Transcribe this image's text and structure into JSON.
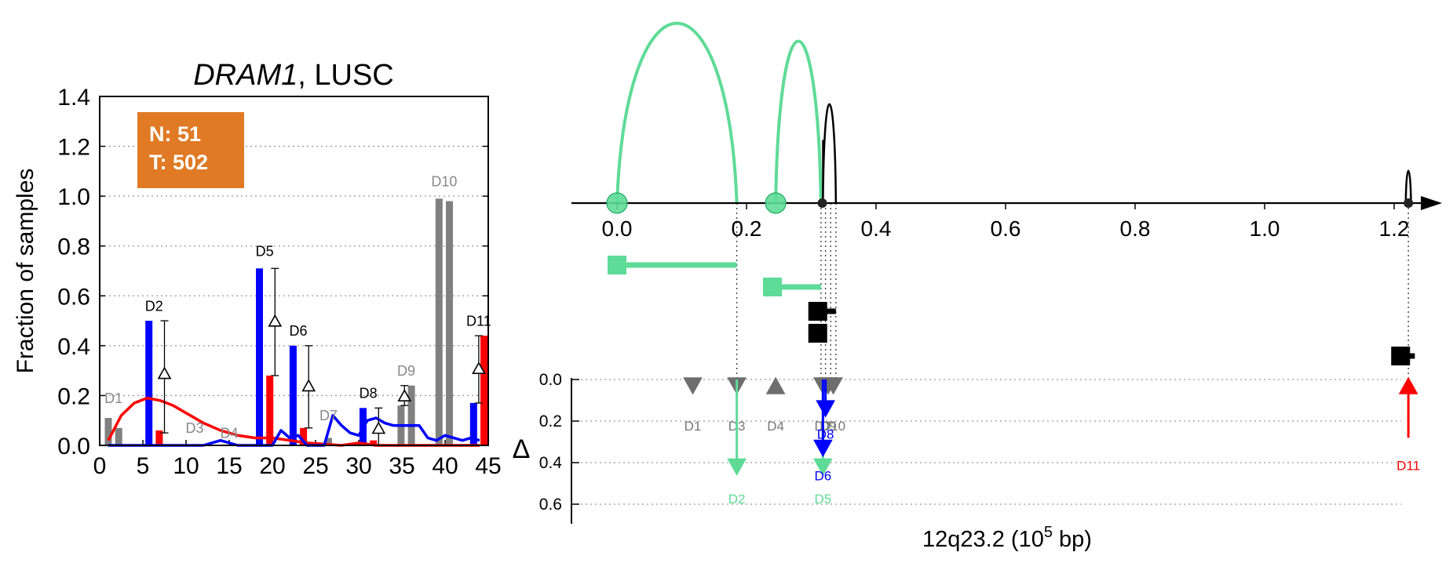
{
  "chart_data": [
    {
      "type": "bar",
      "title": {
        "gene": "DRAM1",
        "rest": ", LUSC"
      },
      "ylabel": "Fraction of samples",
      "xlim": [
        0,
        45
      ],
      "ylim": [
        0,
        1.4
      ],
      "xticks": [
        "0",
        "5",
        "10",
        "15",
        "20",
        "25",
        "30",
        "35",
        "40",
        "45"
      ],
      "yticks": [
        "0.0",
        "0.2",
        "0.4",
        "0.6",
        "0.8",
        "1.0",
        "1.2",
        "1.4"
      ],
      "grid": "horizontal dotted",
      "legend_box": {
        "n_label": "N: 51",
        "t_label": "T: 502",
        "color": "#E07A24"
      },
      "colors": {
        "normal": "#0000FF",
        "tumor": "#FF0000",
        "other": "#808080"
      },
      "domains": [
        {
          "label": "D1",
          "color": "other",
          "label_y": 0.17,
          "bars": [
            {
              "x": 1,
              "v": 0.11,
              "c": "other"
            },
            {
              "x": 2.2,
              "v": 0.07,
              "c": "other"
            }
          ]
        },
        {
          "label": "D2",
          "color": "dark",
          "label_y": 0.54,
          "bars": [
            {
              "x": 5.7,
              "v": 0.5,
              "c": "normal"
            },
            {
              "x": 6.9,
              "v": 0.06,
              "c": "tumor"
            }
          ],
          "delta": {
            "x": 7.5,
            "v": 0.29,
            "lo": 0.05,
            "hi": 0.5
          }
        },
        {
          "label": "D3",
          "color": "other",
          "label_y": 0.05,
          "bars": []
        },
        {
          "label": "D4",
          "color": "other",
          "label_y": 0.03,
          "bars": []
        },
        {
          "label": "D5",
          "color": "dark",
          "label_y": 0.76,
          "bars": [
            {
              "x": 18.5,
              "v": 0.71,
              "c": "normal"
            },
            {
              "x": 19.7,
              "v": 0.28,
              "c": "tumor"
            }
          ],
          "delta": {
            "x": 20.3,
            "v": 0.5,
            "lo": 0.28,
            "hi": 0.71
          }
        },
        {
          "label": "D6",
          "color": "dark",
          "label_y": 0.44,
          "bars": [
            {
              "x": 22.4,
              "v": 0.4,
              "c": "normal"
            },
            {
              "x": 23.6,
              "v": 0.07,
              "c": "tumor"
            }
          ],
          "delta": {
            "x": 24.2,
            "v": 0.24,
            "lo": 0.07,
            "hi": 0.4
          }
        },
        {
          "label": "D7",
          "color": "other",
          "label_y": 0.1,
          "bars": [
            {
              "x": 26.5,
              "v": 0.03,
              "c": "other"
            }
          ]
        },
        {
          "label": "D8",
          "color": "dark",
          "label_y": 0.19,
          "bars": [
            {
              "x": 30.5,
              "v": 0.15,
              "c": "normal"
            },
            {
              "x": 31.7,
              "v": 0.02,
              "c": "tumor"
            }
          ],
          "delta": {
            "x": 32.3,
            "v": 0.07,
            "lo": 0.0,
            "hi": 0.15
          }
        },
        {
          "label": "D9",
          "color": "other",
          "label_y": 0.28,
          "bars": [
            {
              "x": 34.9,
              "v": 0.16,
              "c": "other"
            },
            {
              "x": 36.1,
              "v": 0.24,
              "c": "other"
            }
          ],
          "delta": {
            "x": 35.3,
            "v": 0.2,
            "lo": 0.16,
            "hi": 0.24
          }
        },
        {
          "label": "D10",
          "color": "other",
          "label_y": 1.04,
          "bars": [
            {
              "x": 39.3,
              "v": 0.99,
              "c": "other"
            },
            {
              "x": 40.5,
              "v": 0.98,
              "c": "other"
            }
          ]
        },
        {
          "label": "D11",
          "color": "dark",
          "label_y": 0.48,
          "bars": [
            {
              "x": 43.3,
              "v": 0.17,
              "c": "normal"
            },
            {
              "x": 44.5,
              "v": 0.44,
              "c": "tumor"
            }
          ],
          "delta": {
            "x": 43.9,
            "v": 0.31,
            "lo": 0.17,
            "hi": 0.44
          }
        }
      ],
      "series": [
        {
          "c": "tumor",
          "x": [
            1,
            2.5,
            4,
            5.5,
            7,
            8.5,
            10,
            12,
            14,
            16,
            18,
            20,
            22,
            24,
            26,
            28,
            30,
            32,
            34,
            36,
            38,
            40,
            42,
            44
          ],
          "values": [
            0.02,
            0.12,
            0.17,
            0.19,
            0.18,
            0.16,
            0.13,
            0.09,
            0.06,
            0.04,
            0.03,
            0.03,
            0.02,
            0.01,
            0.005,
            0.0,
            0.01,
            0.0,
            0.0,
            0.0,
            0.0,
            0.0,
            0.0,
            0.0
          ]
        },
        {
          "c": "normal",
          "x": [
            1,
            4,
            8,
            12,
            14,
            16,
            18,
            20,
            21,
            22,
            23,
            24,
            26,
            27,
            28,
            29,
            30,
            31,
            32,
            33,
            34,
            35,
            36,
            37,
            38,
            39,
            40,
            41,
            42,
            43,
            44
          ],
          "values": [
            0.0,
            0.0,
            0.0,
            0.0,
            0.02,
            0.0,
            0.0,
            0.0,
            0.06,
            0.03,
            0.04,
            0.0,
            0.0,
            0.12,
            0.08,
            0.05,
            0.04,
            0.1,
            0.11,
            0.09,
            0.08,
            0.08,
            0.08,
            0.08,
            0.03,
            0.02,
            0.04,
            0.03,
            0.02,
            0.03,
            0.02
          ]
        }
      ]
    },
    {
      "type": "scatter",
      "xlabel": {
        "main": "12q23.2 (10",
        "sup": "5",
        "tail": " bp)"
      },
      "xlim": [
        -0.07,
        1.32
      ],
      "xticks": [
        "0.0",
        "0.2",
        "0.4",
        "0.6",
        "0.8",
        "1.0",
        "1.2"
      ],
      "delta_label": "Δ",
      "delta_ticks": [
        "0.0",
        "0.2",
        "0.4",
        "0.6"
      ],
      "colors": {
        "green": "#5EDB97",
        "black": "#000000",
        "blue": "#0000FF",
        "red": "#FF0000",
        "gray": "#6E6E6E",
        "label_gray": "#777777"
      },
      "arcs": [
        {
          "x1": 0.0,
          "x2": 0.185,
          "h": 1.0,
          "c": "green"
        },
        {
          "x1": 0.245,
          "x2": 0.315,
          "h": 0.9,
          "c": "green"
        },
        {
          "x1": 0.318,
          "x2": 0.338,
          "h": 0.55,
          "c": "black",
          "spike": {
            "x": 0.318,
            "h": 0.35
          }
        },
        {
          "x1": 1.218,
          "x2": 1.226,
          "h": 0.18,
          "c": "black"
        }
      ],
      "circles": [
        {
          "x": 0.0,
          "c": "green"
        },
        {
          "x": 0.245,
          "c": "green"
        }
      ],
      "dots": [
        0.317,
        1.222
      ],
      "isoforms": [
        {
          "box": 0.0,
          "line_to": 0.185,
          "y": 0.0,
          "c": "green"
        },
        {
          "box": 0.24,
          "line_to": 0.315,
          "y": 1.0,
          "c": "green"
        },
        {
          "box": 0.31,
          "line_to": 0.338,
          "y": 2.0,
          "c": "black"
        },
        {
          "box": 0.31,
          "line_to": 0.322,
          "y": 3.0,
          "c": "black"
        },
        {
          "box": 1.21,
          "line_to": 1.232,
          "y": 4.0,
          "c": "black"
        }
      ],
      "vlines": [
        0.185,
        0.315,
        0.322,
        0.33,
        0.338,
        1.222
      ],
      "markers": [
        {
          "label": "D1",
          "x": 0.117,
          "dir": "down",
          "delta": 0.0,
          "c": "gray",
          "lc": "label_gray",
          "ly": 0.2
        },
        {
          "label": "D3",
          "x": 0.185,
          "dir": "down",
          "delta": 0.0,
          "c": "gray",
          "lc": "label_gray",
          "ly": 0.2
        },
        {
          "label": "D4",
          "x": 0.245,
          "dir": "up",
          "delta": 0.0,
          "c": "gray",
          "lc": "label_gray",
          "ly": 0.2
        },
        {
          "label": "D7",
          "x": 0.318,
          "dir": "down",
          "delta": 0.0,
          "c": "gray",
          "lc": "label_gray",
          "ly": 0.2
        },
        {
          "label": "D9",
          "x": 0.326,
          "dir": "down",
          "delta": 0.0,
          "c": "gray",
          "lc": "label_gray",
          "ly": 0.2
        },
        {
          "label": "D10",
          "x": 0.334,
          "dir": "down",
          "delta": 0.0,
          "c": "gray",
          "lc": "label_gray",
          "ly": 0.2
        },
        {
          "label": "D2",
          "x": 0.185,
          "dir": "down",
          "delta": 0.42,
          "c": "green",
          "lc": "green",
          "ly": 0.55
        },
        {
          "label": "D5",
          "x": 0.318,
          "dir": "down",
          "delta": 0.42,
          "c": "green",
          "lc": "green",
          "ly": 0.55
        },
        {
          "label": "D6",
          "x": 0.318,
          "dir": "down",
          "delta": 0.33,
          "c": "blue",
          "lc": "blue",
          "ly": 0.44
        },
        {
          "label": "D8",
          "x": 0.322,
          "dir": "down",
          "delta": 0.14,
          "c": "blue",
          "lc": "blue",
          "ly": 0.24
        },
        {
          "label": "D11",
          "x": 1.222,
          "dir": "up",
          "delta": 0.28,
          "c": "red",
          "lc": "red",
          "ly": 0.39
        }
      ]
    }
  ]
}
